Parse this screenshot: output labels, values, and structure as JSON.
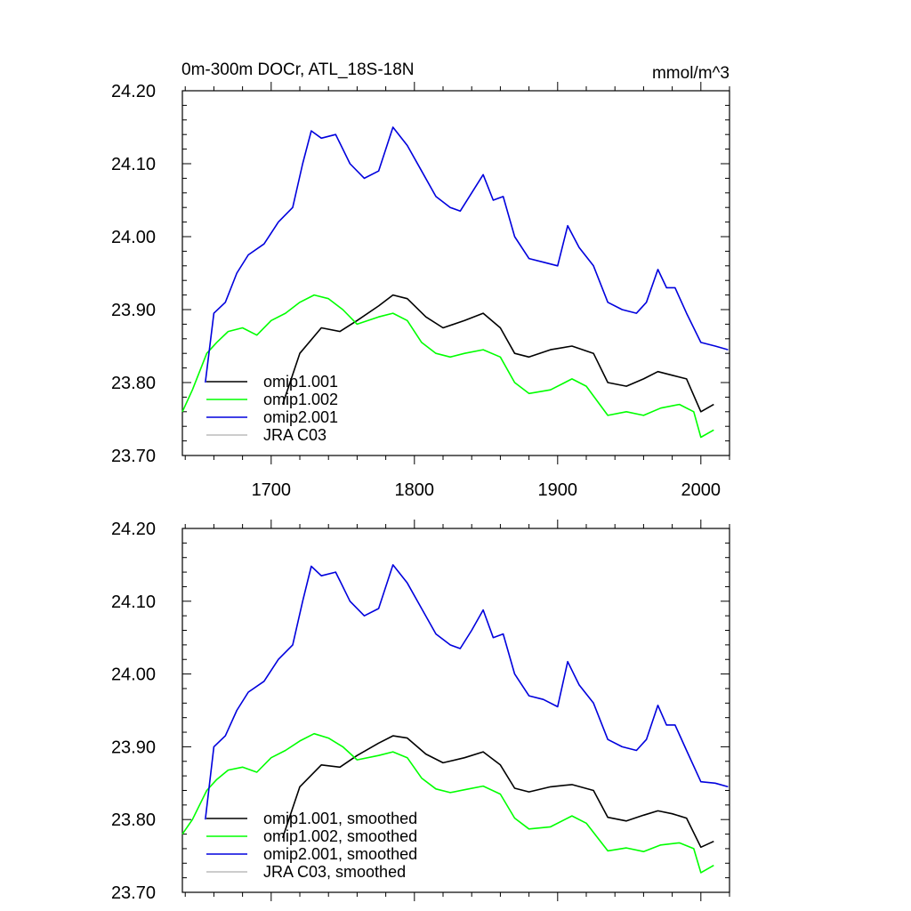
{
  "figure": {
    "title_left": "0m-300m DOCr, ATL_18S-18N",
    "title_right": "mmol/m^3"
  },
  "chart_data": [
    {
      "type": "line",
      "title": "0m-300m DOCr, ATL_18S-18N",
      "units": "mmol/m^3",
      "xlim": [
        1638,
        2020
      ],
      "ylim": [
        23.7,
        24.2
      ],
      "x_ticks": [
        1700,
        1800,
        1900,
        2000
      ],
      "x_tick_labels": [
        "1700",
        "1800",
        "1900",
        "2000"
      ],
      "y_ticks": [
        23.7,
        23.8,
        23.9,
        24.0,
        24.1,
        24.2
      ],
      "y_tick_labels": [
        "23.70",
        "23.80",
        "23.90",
        "24.00",
        "24.10",
        "24.20"
      ],
      "legend_position": "bottom-left",
      "legend_entries": [
        "omip1.001",
        "omip1.002",
        "omip2.001",
        "JRA C03"
      ],
      "grid": false,
      "series": [
        {
          "name": "omip1.001",
          "color": "#000000",
          "x": [
            1708,
            1720,
            1735,
            1748,
            1760,
            1775,
            1785,
            1795,
            1808,
            1820,
            1835,
            1848,
            1860,
            1870,
            1880,
            1895,
            1910,
            1925,
            1935,
            1948,
            1960,
            1970,
            1980,
            1990,
            2000,
            2009
          ],
          "y": [
            23.77,
            23.84,
            23.875,
            23.87,
            23.885,
            23.905,
            23.92,
            23.915,
            23.89,
            23.875,
            23.885,
            23.895,
            23.875,
            23.84,
            23.835,
            23.845,
            23.85,
            23.84,
            23.8,
            23.795,
            23.805,
            23.815,
            23.81,
            23.805,
            23.76,
            23.77
          ]
        },
        {
          "name": "omip1.002",
          "color": "#00ff00",
          "x": [
            1638,
            1645,
            1655,
            1662,
            1670,
            1680,
            1690,
            1700,
            1710,
            1720,
            1730,
            1740,
            1750,
            1760,
            1775,
            1785,
            1795,
            1805,
            1815,
            1825,
            1835,
            1848,
            1860,
            1870,
            1880,
            1895,
            1910,
            1920,
            1935,
            1948,
            1960,
            1972,
            1985,
            1995,
            2000,
            2009
          ],
          "y": [
            23.76,
            23.79,
            23.84,
            23.855,
            23.87,
            23.875,
            23.865,
            23.885,
            23.895,
            23.91,
            23.92,
            23.915,
            23.9,
            23.88,
            23.89,
            23.895,
            23.885,
            23.855,
            23.84,
            23.835,
            23.84,
            23.845,
            23.835,
            23.8,
            23.785,
            23.79,
            23.805,
            23.795,
            23.755,
            23.76,
            23.755,
            23.765,
            23.77,
            23.76,
            23.725,
            23.735
          ]
        },
        {
          "name": "omip2.001",
          "color": "#0000dd",
          "x": [
            1654,
            1660,
            1668,
            1676,
            1684,
            1695,
            1705,
            1715,
            1722,
            1728,
            1735,
            1745,
            1755,
            1765,
            1775,
            1785,
            1795,
            1805,
            1815,
            1825,
            1832,
            1840,
            1848,
            1855,
            1862,
            1870,
            1880,
            1890,
            1900,
            1907,
            1915,
            1925,
            1935,
            1945,
            1955,
            1962,
            1970,
            1976,
            1982,
            1990,
            2000,
            2010,
            2019
          ],
          "y": [
            23.8,
            23.895,
            23.91,
            23.95,
            23.975,
            23.99,
            24.02,
            24.04,
            24.1,
            24.145,
            24.135,
            24.14,
            24.1,
            24.08,
            24.09,
            24.15,
            24.125,
            24.09,
            24.055,
            24.04,
            24.035,
            24.06,
            24.085,
            24.05,
            24.055,
            24.0,
            23.97,
            23.965,
            23.96,
            24.015,
            23.985,
            23.96,
            23.91,
            23.9,
            23.895,
            23.91,
            23.955,
            23.93,
            23.93,
            23.895,
            23.855,
            23.85,
            23.845
          ]
        },
        {
          "name": "JRA C03",
          "color": "#bbbbbb",
          "x": [],
          "y": []
        }
      ]
    },
    {
      "type": "line",
      "xlim": [
        1638,
        2020
      ],
      "ylim": [
        23.7,
        24.2
      ],
      "x_ticks": [
        1700,
        1800,
        1900,
        2000
      ],
      "y_ticks": [
        23.7,
        23.8,
        23.9,
        24.0,
        24.1,
        24.2
      ],
      "y_tick_labels": [
        "23.70",
        "23.80",
        "23.90",
        "24.00",
        "24.10",
        "24.20"
      ],
      "legend_position": "bottom-left",
      "legend_entries": [
        "omip1.001, smoothed",
        "omip1.002, smoothed",
        "omip2.001, smoothed",
        "JRA C03, smoothed"
      ],
      "grid": false,
      "series": [
        {
          "name": "omip1.001, smoothed",
          "color": "#000000",
          "x": [
            1708,
            1720,
            1735,
            1748,
            1760,
            1775,
            1785,
            1795,
            1808,
            1820,
            1835,
            1848,
            1860,
            1870,
            1880,
            1895,
            1910,
            1925,
            1935,
            1948,
            1960,
            1970,
            1980,
            1990,
            2000,
            2009
          ],
          "y": [
            23.775,
            23.845,
            23.875,
            23.872,
            23.888,
            23.905,
            23.915,
            23.912,
            23.89,
            23.878,
            23.885,
            23.893,
            23.875,
            23.843,
            23.838,
            23.845,
            23.848,
            23.84,
            23.803,
            23.798,
            23.806,
            23.812,
            23.808,
            23.802,
            23.762,
            23.77
          ]
        },
        {
          "name": "omip1.002, smoothed",
          "color": "#00ff00",
          "x": [
            1638,
            1645,
            1655,
            1662,
            1670,
            1680,
            1690,
            1700,
            1710,
            1720,
            1730,
            1740,
            1750,
            1760,
            1775,
            1785,
            1795,
            1805,
            1815,
            1825,
            1835,
            1848,
            1860,
            1870,
            1880,
            1895,
            1910,
            1920,
            1935,
            1948,
            1960,
            1972,
            1985,
            1995,
            2000,
            2009
          ],
          "y": [
            23.78,
            23.8,
            23.84,
            23.855,
            23.868,
            23.872,
            23.865,
            23.885,
            23.895,
            23.908,
            23.918,
            23.912,
            23.9,
            23.882,
            23.888,
            23.893,
            23.885,
            23.857,
            23.842,
            23.837,
            23.841,
            23.846,
            23.835,
            23.802,
            23.787,
            23.79,
            23.805,
            23.795,
            23.757,
            23.761,
            23.756,
            23.765,
            23.768,
            23.76,
            23.727,
            23.737
          ]
        },
        {
          "name": "omip2.001, smoothed",
          "color": "#0000dd",
          "x": [
            1654,
            1660,
            1668,
            1676,
            1684,
            1695,
            1705,
            1715,
            1722,
            1728,
            1735,
            1745,
            1755,
            1765,
            1775,
            1785,
            1795,
            1805,
            1815,
            1825,
            1832,
            1840,
            1848,
            1855,
            1862,
            1870,
            1880,
            1890,
            1900,
            1907,
            1915,
            1925,
            1935,
            1945,
            1955,
            1962,
            1970,
            1976,
            1982,
            1990,
            2000,
            2010,
            2019
          ],
          "y": [
            23.8,
            23.9,
            23.915,
            23.95,
            23.975,
            23.99,
            24.02,
            24.04,
            24.1,
            24.148,
            24.135,
            24.14,
            24.1,
            24.08,
            24.09,
            24.15,
            24.125,
            24.09,
            24.055,
            24.04,
            24.035,
            24.06,
            24.088,
            24.05,
            24.055,
            24.0,
            23.97,
            23.965,
            23.955,
            24.017,
            23.985,
            23.96,
            23.91,
            23.9,
            23.895,
            23.91,
            23.957,
            23.93,
            23.93,
            23.895,
            23.852,
            23.85,
            23.845
          ]
        },
        {
          "name": "JRA C03, smoothed",
          "color": "#bbbbbb",
          "x": [],
          "y": []
        }
      ]
    }
  ]
}
